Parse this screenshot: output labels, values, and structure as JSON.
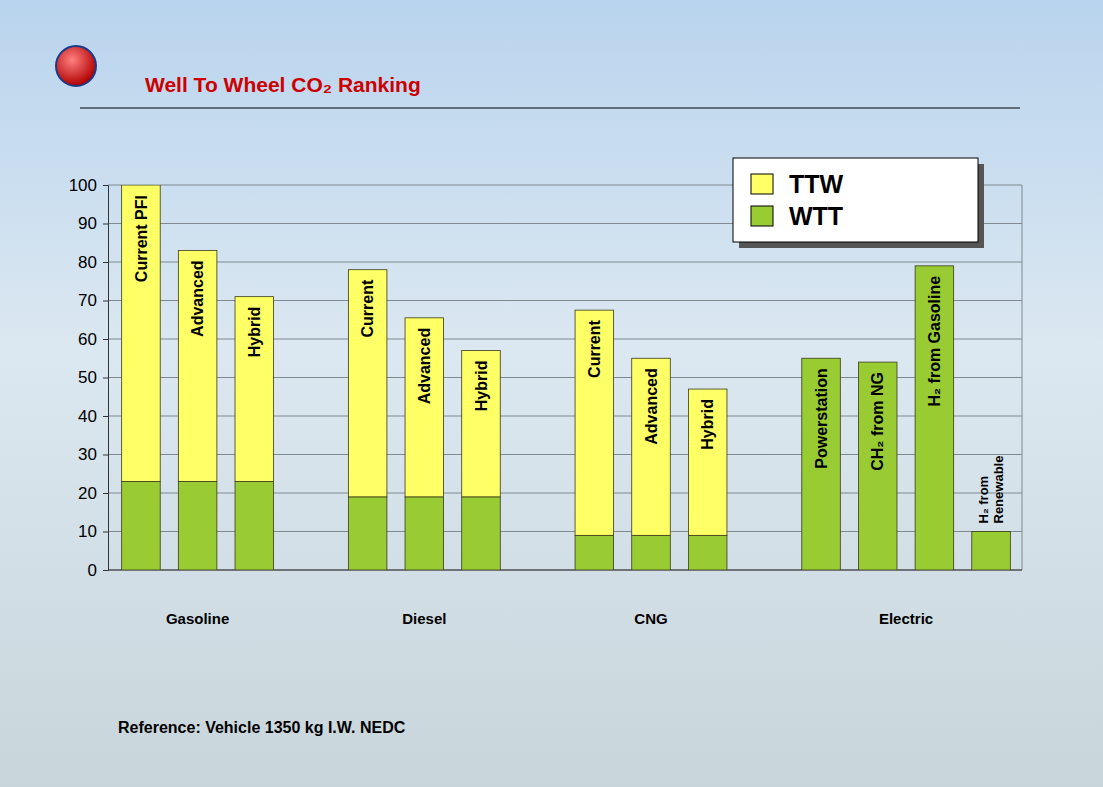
{
  "chart_data": {
    "type": "bar",
    "title": "Well To Wheel CO₂ Ranking",
    "note": "Reference: Vehicle 1350 kg I.W. NEDC",
    "groups": [
      {
        "label": "Gasoline",
        "categories": [
          "Current PFI",
          "Advanced",
          "Hybrid"
        ]
      },
      {
        "label": "Diesel",
        "categories": [
          "Current",
          "Advanced",
          "Hybrid"
        ]
      },
      {
        "label": "CNG",
        "categories": [
          "Current",
          "Advanced",
          "Hybrid"
        ]
      },
      {
        "label": "Electric",
        "categories": [
          "Powerstation",
          "CH₂ from NG",
          "H₂ from Gasoline",
          "H₂ from Renewable"
        ]
      }
    ],
    "series": [
      {
        "name": "TTW",
        "color": "#ffff66",
        "values": [
          77,
          60,
          48,
          59,
          46.5,
          38,
          58.5,
          46,
          38,
          0,
          0,
          0,
          0
        ]
      },
      {
        "name": "WTT",
        "color": "#99cc33",
        "values": [
          23,
          23,
          23,
          19,
          19,
          19,
          9,
          9,
          9,
          55,
          54,
          79,
          10
        ]
      }
    ],
    "stacked": true,
    "ylim": [
      0,
      100
    ],
    "yticks": [
      0,
      10,
      20,
      30,
      40,
      50,
      60,
      70,
      80,
      90,
      100
    ],
    "grid": true,
    "legend": "upper right"
  }
}
